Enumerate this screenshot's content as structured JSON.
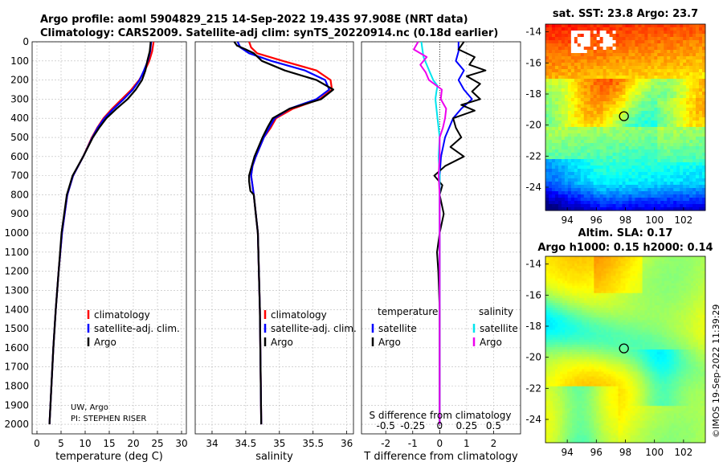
{
  "title_line1": "Argo profile: aoml 5904829_215 14-Sep-2022 19.43S 97.908E (NRT data)",
  "title_line2": "Climatology: CARS2009. Satellite-adj clim: synTS_20220914.nc (0.18d earlier)",
  "credit_line1": "UW, Argo",
  "credit_line2": "PI: STEPHEN RISER",
  "timestamp": "©IMOS 19-Sep-2022 11:39:29",
  "colors": {
    "climatology": "#ff0000",
    "satellite": "#0000ff",
    "argo": "#000000",
    "sat_sal": "#00e5ee",
    "argo_sal": "#ee00ee"
  },
  "chart_data": [
    {
      "type": "line",
      "id": "temperature",
      "xlabel": "temperature (deg C)",
      "xlim": [
        -1,
        31
      ],
      "xticks": [
        0,
        5,
        10,
        15,
        20,
        25,
        30
      ],
      "xtick_labels": [
        "0",
        "5",
        "10",
        "15",
        "20",
        "25",
        "30"
      ],
      "ylim": [
        0,
        2050
      ],
      "yticks": [
        0,
        100,
        200,
        300,
        400,
        500,
        600,
        700,
        800,
        900,
        1000,
        1100,
        1200,
        1300,
        1400,
        1500,
        1600,
        1700,
        1800,
        1900,
        2000
      ],
      "ytick_labels": [
        "0",
        "100",
        "200",
        "300",
        "400",
        "500",
        "600",
        "700",
        "800",
        "900",
        "1000",
        "1100",
        "1200",
        "1300",
        "1400",
        "1500",
        "1600",
        "1700",
        "1800",
        "1900",
        "2000"
      ],
      "legend": [
        "climatology",
        "satellite-adj. clim.",
        "Argo"
      ],
      "legend_position": "bottom-right",
      "series": [
        {
          "name": "climatology",
          "color": "#ff0000",
          "depth": [
            0,
            50,
            100,
            150,
            200,
            250,
            300,
            350,
            400,
            450,
            500,
            600,
            700,
            800,
            1000,
            1200,
            1400,
            1600,
            1800,
            2000
          ],
          "values": [
            24.2,
            23.9,
            23.3,
            22.4,
            21.2,
            19.6,
            17.6,
            15.6,
            13.8,
            12.5,
            11.4,
            9.6,
            7.5,
            6.3,
            5.2,
            4.5,
            3.9,
            3.4,
            3.0,
            2.6
          ]
        },
        {
          "name": "satellite-adj. clim.",
          "color": "#0000ff",
          "depth": [
            0,
            50,
            100,
            150,
            200,
            250,
            300,
            350,
            400,
            450,
            500,
            600,
            700,
            800,
            1000,
            1200,
            1400,
            1600,
            1800,
            2000
          ],
          "values": [
            23.7,
            23.5,
            23.0,
            22.2,
            21.3,
            19.9,
            18.0,
            15.9,
            14.0,
            12.6,
            11.5,
            9.6,
            7.5,
            6.3,
            5.2,
            4.5,
            3.9,
            3.4,
            3.0,
            2.6
          ]
        },
        {
          "name": "Argo",
          "color": "#000000",
          "depth": [
            0,
            50,
            100,
            150,
            200,
            250,
            300,
            350,
            400,
            450,
            500,
            600,
            700,
            800,
            1000,
            1200,
            1400,
            1600,
            1800,
            2000
          ],
          "values": [
            23.6,
            23.4,
            22.9,
            22.5,
            21.8,
            20.5,
            18.8,
            16.5,
            14.4,
            12.9,
            11.6,
            9.6,
            7.4,
            6.2,
            5.1,
            4.5,
            3.9,
            3.4,
            3.0,
            2.6
          ]
        }
      ]
    },
    {
      "type": "line",
      "id": "salinity",
      "xlabel": "salinity",
      "xlim": [
        33.75,
        36.1
      ],
      "xticks": [
        34,
        34.5,
        35,
        35.5,
        36
      ],
      "xtick_labels": [
        "34",
        "34.5",
        "35",
        "35.5",
        "36"
      ],
      "ylim": [
        0,
        2050
      ],
      "legend": [
        "climatology",
        "satellite-adj. clim.",
        "Argo"
      ],
      "legend_position": "bottom-right",
      "series": [
        {
          "name": "climatology",
          "color": "#ff0000",
          "depth": [
            0,
            30,
            60,
            100,
            150,
            200,
            250,
            300,
            350,
            400,
            450,
            500,
            600,
            650,
            700,
            800,
            1000,
            1400,
            2000
          ],
          "values": [
            34.55,
            34.58,
            34.67,
            35.05,
            35.55,
            35.76,
            35.78,
            35.6,
            35.2,
            34.95,
            34.87,
            34.77,
            34.65,
            34.6,
            34.58,
            34.62,
            34.68,
            34.71,
            34.73
          ]
        },
        {
          "name": "satellite-adj. clim.",
          "color": "#0000ff",
          "depth": [
            0,
            30,
            60,
            100,
            150,
            200,
            250,
            300,
            350,
            400,
            450,
            500,
            600,
            650,
            700,
            800,
            1000,
            1400,
            2000
          ],
          "values": [
            34.38,
            34.42,
            34.55,
            34.88,
            35.38,
            35.68,
            35.74,
            35.55,
            35.15,
            34.93,
            34.85,
            34.77,
            34.65,
            34.6,
            34.58,
            34.62,
            34.68,
            34.71,
            34.73
          ]
        },
        {
          "name": "Argo",
          "color": "#000000",
          "depth": [
            0,
            20,
            40,
            60,
            100,
            150,
            200,
            250,
            300,
            350,
            400,
            450,
            500,
            600,
            650,
            700,
            730,
            780,
            800,
            900,
            1000,
            1400,
            2000
          ],
          "values": [
            34.33,
            34.37,
            34.5,
            34.62,
            34.74,
            35.08,
            35.55,
            35.8,
            35.62,
            35.15,
            34.9,
            34.82,
            34.75,
            34.63,
            34.59,
            34.55,
            34.55,
            34.57,
            34.62,
            34.65,
            34.68,
            34.71,
            34.73
          ]
        }
      ]
    },
    {
      "type": "line",
      "id": "difference",
      "xlabel": "T difference from climatology",
      "xlabel_top": "S difference from climatology",
      "xlim": [
        -2.9,
        3.0
      ],
      "xticks": [
        -2,
        -1,
        0,
        1,
        2
      ],
      "xtick_labels": [
        "-2",
        "-1",
        "0",
        "1",
        "2"
      ],
      "sticks": [
        -0.5,
        -0.25,
        0,
        0.25,
        0.5
      ],
      "stick_labels": [
        "-0.5",
        "-0.25",
        "0",
        "0.25",
        "0.5"
      ],
      "s_scale": 2.0,
      "ylim": [
        0,
        2050
      ],
      "legend_groups": [
        {
          "title": "temperature",
          "items": [
            "satellite",
            "Argo"
          ]
        },
        {
          "title": "salinity",
          "items": [
            "satellite",
            "Argo"
          ]
        }
      ],
      "series": [
        {
          "name": "temperature satellite",
          "color": "#0000ff",
          "depth": [
            0,
            50,
            100,
            150,
            200,
            250,
            300,
            350,
            400,
            500,
            600,
            700,
            800,
            1000,
            2000
          ],
          "values": [
            0.7,
            0.7,
            0.6,
            0.9,
            0.7,
            0.9,
            1.2,
            0.8,
            0.5,
            0.2,
            0.05,
            0.0,
            0.0,
            0.0,
            0.0
          ]
        },
        {
          "name": "temperature Argo",
          "color": "#000000",
          "depth": [
            0,
            40,
            80,
            120,
            150,
            180,
            220,
            260,
            300,
            330,
            360,
            400,
            450,
            500,
            550,
            600,
            650,
            700,
            750,
            800,
            900,
            1000,
            1100,
            1200,
            1400,
            1600,
            1800,
            2000
          ],
          "values": [
            0.9,
            0.7,
            1.3,
            1.1,
            1.7,
            1.0,
            1.5,
            1.2,
            1.5,
            0.8,
            1.3,
            0.5,
            0.6,
            0.8,
            0.4,
            0.9,
            0.2,
            -0.2,
            0.1,
            0.0,
            0.15,
            0.0,
            -0.1,
            -0.05,
            0.0,
            0.0,
            0.0,
            0.0
          ]
        },
        {
          "name": "salinity satellite",
          "color": "#00e5ee",
          "depth": [
            0,
            40,
            80,
            120,
            160,
            200,
            230,
            260,
            300,
            350,
            400,
            500,
            600,
            700,
            800,
            1000,
            2000
          ],
          "values": [
            -0.17,
            -0.16,
            -0.15,
            -0.12,
            -0.09,
            -0.06,
            -0.02,
            -0.03,
            -0.04,
            -0.03,
            -0.02,
            0.0,
            -0.01,
            0.0,
            0.0,
            0.0,
            0.0
          ]
        },
        {
          "name": "salinity Argo",
          "color": "#ee00ee",
          "depth": [
            0,
            40,
            80,
            120,
            160,
            200,
            250,
            300,
            350,
            400,
            450,
            500,
            600,
            700,
            800,
            1000,
            2000
          ],
          "values": [
            -0.2,
            -0.24,
            -0.12,
            -0.18,
            -0.13,
            -0.1,
            0.02,
            0.01,
            0.06,
            0.05,
            0.03,
            0.0,
            0.0,
            -0.01,
            0.0,
            0.0,
            0.0
          ]
        }
      ]
    },
    {
      "type": "heatmap",
      "id": "sst_map",
      "title": "sat. SST: 23.8 Argo: 23.7",
      "xlim": [
        92.5,
        103.5
      ],
      "ylim": [
        -25.5,
        -13.5
      ],
      "xticks": [
        94,
        96,
        98,
        100,
        102
      ],
      "xtick_labels": [
        "94",
        "96",
        "98",
        "100",
        "102"
      ],
      "yticks": [
        -24,
        -22,
        -20,
        -18,
        -16,
        -14
      ],
      "ytick_labels": [
        "-24",
        "-22",
        "-20",
        "-18",
        "-16",
        "-14"
      ],
      "marker": {
        "lon": 97.9,
        "lat": -19.43
      },
      "value_range": [
        19,
        28
      ],
      "colormap": "jet"
    },
    {
      "type": "heatmap",
      "id": "sla_map",
      "title_line1": "Altim. SLA: 0.17",
      "title_line2": "Argo h1000: 0.15 h2000: 0.14",
      "xlim": [
        92.5,
        103.5
      ],
      "ylim": [
        -25.5,
        -13.5
      ],
      "xticks": [
        94,
        96,
        98,
        100,
        102
      ],
      "xtick_labels": [
        "94",
        "96",
        "98",
        "100",
        "102"
      ],
      "yticks": [
        -24,
        -22,
        -20,
        -18,
        -16,
        -14
      ],
      "ytick_labels": [
        "-24",
        "-22",
        "-20",
        "-18",
        "-16",
        "-14"
      ],
      "marker": {
        "lon": 97.9,
        "lat": -19.43
      },
      "value_range": [
        -0.3,
        0.4
      ],
      "colormap": "jet"
    }
  ]
}
